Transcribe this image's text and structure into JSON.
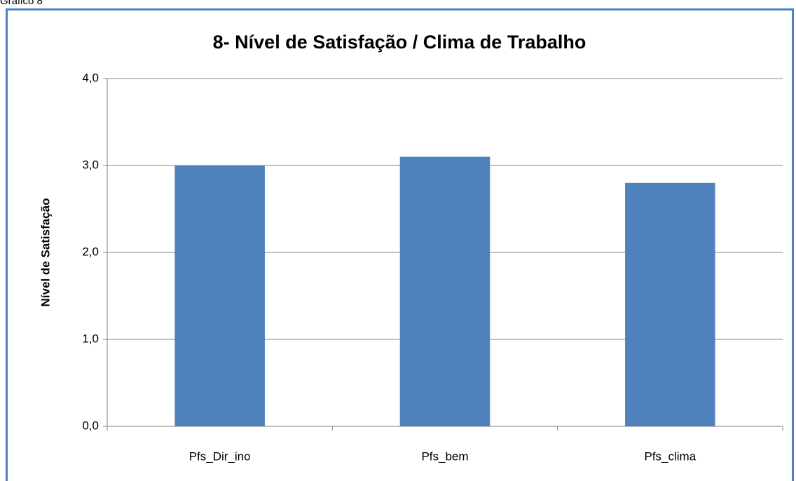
{
  "caption": "Gráfico 8",
  "chart_data": {
    "type": "bar",
    "title": "8- Nível de Satisfação / Clima de Trabalho",
    "y_label": "Nível de Satisfação",
    "categories": [
      "Pfs_Dir_ino",
      "Pfs_bem",
      "Pfs_clima"
    ],
    "values": [
      3.0,
      3.1,
      2.8
    ],
    "color": "#4f81bd",
    "ylim": [
      0,
      4
    ],
    "yticks": [
      {
        "value": 0,
        "label": "0,0"
      },
      {
        "value": 1,
        "label": "1,0"
      },
      {
        "value": 2,
        "label": "2,0"
      },
      {
        "value": 3,
        "label": "3,0"
      },
      {
        "value": 4,
        "label": "4,0"
      }
    ],
    "grid": true
  }
}
